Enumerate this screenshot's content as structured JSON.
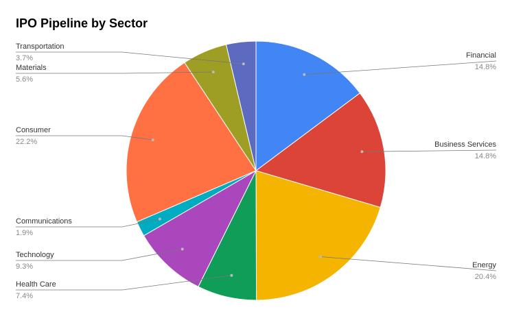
{
  "chart_data": {
    "type": "pie",
    "title": "IPO Pipeline by Sector",
    "slices": [
      {
        "label": "Financial",
        "value": 14.8,
        "pct_label": "14.8%",
        "color": "#4285f4"
      },
      {
        "label": "Business Services",
        "value": 14.8,
        "pct_label": "14.8%",
        "color": "#db4437"
      },
      {
        "label": "Energy",
        "value": 20.4,
        "pct_label": "20.4%",
        "color": "#f4b400"
      },
      {
        "label": "Health Care",
        "value": 7.4,
        "pct_label": "7.4%",
        "color": "#0f9d58"
      },
      {
        "label": "Technology",
        "value": 9.3,
        "pct_label": "9.3%",
        "color": "#ab47bc"
      },
      {
        "label": "Communications",
        "value": 1.9,
        "pct_label": "1.9%",
        "color": "#00acc1"
      },
      {
        "label": "Consumer",
        "value": 22.2,
        "pct_label": "22.2%",
        "color": "#ff7043"
      },
      {
        "label": "Materials",
        "value": 5.6,
        "pct_label": "5.6%",
        "color": "#9e9d24"
      },
      {
        "label": "Transportation",
        "value": 3.7,
        "pct_label": "3.7%",
        "color": "#5c6bc0"
      }
    ],
    "legend": "none",
    "labels": "callout"
  }
}
